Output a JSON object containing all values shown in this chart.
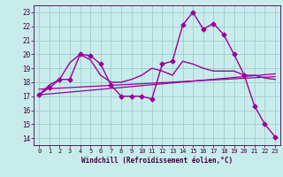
{
  "background_color": "#c8ecec",
  "grid_color": "#9ecece",
  "line_color": "#990099",
  "xlim": [
    -0.5,
    23.5
  ],
  "ylim": [
    13.5,
    23.5
  ],
  "yticks": [
    14,
    15,
    16,
    17,
    18,
    19,
    20,
    21,
    22,
    23
  ],
  "xticks": [
    0,
    1,
    2,
    3,
    4,
    5,
    6,
    7,
    8,
    9,
    10,
    11,
    12,
    13,
    14,
    15,
    16,
    17,
    18,
    19,
    20,
    21,
    22,
    23
  ],
  "xlabel": "Windchill (Refroidissement éolien,°C)",
  "series": [
    {
      "x": [
        0,
        1,
        2,
        3,
        4,
        5,
        6,
        7,
        8,
        9,
        10,
        11,
        12,
        13,
        14,
        15,
        16,
        17,
        18,
        19,
        20,
        21,
        22,
        23
      ],
      "y": [
        17.1,
        17.6,
        18.2,
        18.2,
        20.0,
        19.9,
        19.3,
        17.8,
        17.0,
        17.0,
        17.0,
        16.8,
        19.3,
        19.5,
        22.1,
        23.0,
        21.8,
        22.2,
        21.4,
        20.0,
        18.5,
        16.3,
        15.0,
        14.1
      ],
      "marker": "D",
      "markersize": 2.5,
      "linewidth": 1.0,
      "linestyle": "-"
    },
    {
      "x": [
        0,
        1,
        2,
        3,
        4,
        5,
        6,
        7,
        8,
        9,
        10,
        11,
        12,
        13,
        14,
        15,
        16,
        17,
        18,
        19,
        20,
        21,
        22,
        23
      ],
      "y": [
        17.1,
        17.8,
        18.2,
        19.4,
        20.0,
        19.6,
        18.5,
        18.0,
        18.0,
        18.2,
        18.5,
        19.0,
        18.8,
        18.5,
        19.5,
        19.3,
        19.0,
        18.8,
        18.8,
        18.8,
        18.5,
        18.5,
        18.3,
        18.2
      ],
      "marker": null,
      "markersize": 0,
      "linewidth": 1.0,
      "linestyle": "-"
    },
    {
      "x": [
        0,
        23
      ],
      "y": [
        17.1,
        18.6
      ],
      "marker": null,
      "markersize": 0,
      "linewidth": 0.9,
      "linestyle": "-"
    },
    {
      "x": [
        0,
        23
      ],
      "y": [
        17.5,
        18.4
      ],
      "marker": null,
      "markersize": 0,
      "linewidth": 0.9,
      "linestyle": "-"
    }
  ]
}
